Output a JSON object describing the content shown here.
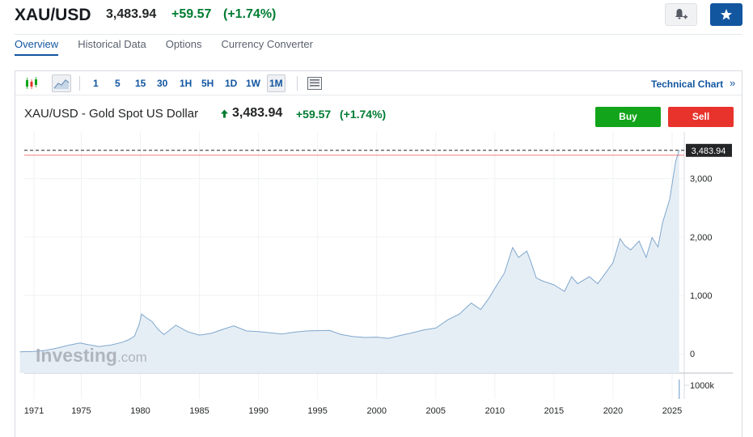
{
  "header": {
    "symbol": "XAU/USD",
    "price": "3,483.94",
    "change": "+59.57",
    "change_pct": "(+1.74%)"
  },
  "icons": {
    "alert": "bell-plus-icon",
    "watchlist": "star-icon"
  },
  "nav": {
    "items": [
      "Overview",
      "Historical Data",
      "Options",
      "Currency Converter"
    ],
    "active": "Overview"
  },
  "toolbar": {
    "chart_type_icons": [
      "candlestick-icon",
      "area-chart-icon"
    ],
    "timeframes": [
      "1",
      "5",
      "15",
      "30",
      "1H",
      "5H",
      "1D",
      "1W",
      "1M"
    ],
    "active_timeframe": "1M",
    "layout_icon": "layout-icon",
    "technical_chart_label": "Technical Chart",
    "technical_chart_arrow": "»"
  },
  "chart_header": {
    "title": "XAU/USD - Gold Spot US Dollar",
    "price": "3,483.94",
    "change": "+59.57",
    "change_pct": "(+1.74%)",
    "buy_label": "Buy",
    "sell_label": "Sell"
  },
  "watermark": {
    "brand": "Investing",
    "suffix": ".com"
  },
  "colors": {
    "accent": "#1256a0",
    "positive": "#007c32",
    "buy": "#12a41a",
    "sell": "#e7332b",
    "line": "#7fa7cd",
    "area": "#e6eef5"
  },
  "chart_data": {
    "type": "area",
    "title": "XAU/USD - Gold Spot US Dollar",
    "xlabel": "",
    "ylabel": "",
    "x_ticks": [
      "1971",
      "1975",
      "1980",
      "1985",
      "1990",
      "1995",
      "2000",
      "2005",
      "2010",
      "2015",
      "2020",
      "2025"
    ],
    "y_ticks": [
      "0",
      "1,000",
      "2,000",
      "3,000"
    ],
    "ylim": [
      -330,
      3800
    ],
    "last_price_label": "3,483.94",
    "last_price": 3483.94,
    "volume_label": "1000k",
    "grid": true,
    "series": [
      {
        "values": [
          [
            1969.8,
            35
          ],
          [
            1971.0,
            40
          ],
          [
            1972.0,
            60
          ],
          [
            1973.0,
            100
          ],
          [
            1974.0,
            150
          ],
          [
            1974.9,
            185
          ],
          [
            1975.5,
            160
          ],
          [
            1976.5,
            125
          ],
          [
            1977.5,
            150
          ],
          [
            1978.5,
            200
          ],
          [
            1979.0,
            240
          ],
          [
            1979.5,
            300
          ],
          [
            1979.9,
            500
          ],
          [
            1980.1,
            680
          ],
          [
            1980.5,
            620
          ],
          [
            1981.0,
            550
          ],
          [
            1981.5,
            420
          ],
          [
            1982.0,
            330
          ],
          [
            1982.7,
            440
          ],
          [
            1983.0,
            490
          ],
          [
            1984.0,
            380
          ],
          [
            1985.0,
            320
          ],
          [
            1986.0,
            350
          ],
          [
            1987.0,
            420
          ],
          [
            1987.9,
            480
          ],
          [
            1989.0,
            390
          ],
          [
            1990.0,
            380
          ],
          [
            1991.0,
            360
          ],
          [
            1992.0,
            340
          ],
          [
            1993.0,
            370
          ],
          [
            1994.0,
            390
          ],
          [
            1996.0,
            400
          ],
          [
            1997.0,
            330
          ],
          [
            1998.0,
            295
          ],
          [
            1999.0,
            280
          ],
          [
            2000.0,
            285
          ],
          [
            2001.0,
            265
          ],
          [
            2002.0,
            315
          ],
          [
            2003.0,
            360
          ],
          [
            2004.0,
            410
          ],
          [
            2005.0,
            440
          ],
          [
            2006.0,
            580
          ],
          [
            2007.0,
            680
          ],
          [
            2008.0,
            870
          ],
          [
            2008.8,
            760
          ],
          [
            2009.5,
            950
          ],
          [
            2010.0,
            1120
          ],
          [
            2010.8,
            1380
          ],
          [
            2011.5,
            1820
          ],
          [
            2012.0,
            1650
          ],
          [
            2012.7,
            1760
          ],
          [
            2013.0,
            1600
          ],
          [
            2013.5,
            1300
          ],
          [
            2014.0,
            1250
          ],
          [
            2015.0,
            1180
          ],
          [
            2015.9,
            1070
          ],
          [
            2016.5,
            1320
          ],
          [
            2017.0,
            1200
          ],
          [
            2018.0,
            1320
          ],
          [
            2018.7,
            1200
          ],
          [
            2019.5,
            1420
          ],
          [
            2020.0,
            1560
          ],
          [
            2020.6,
            1970
          ],
          [
            2021.0,
            1850
          ],
          [
            2021.5,
            1780
          ],
          [
            2022.2,
            1930
          ],
          [
            2022.8,
            1650
          ],
          [
            2023.3,
            1990
          ],
          [
            2023.8,
            1830
          ],
          [
            2024.2,
            2250
          ],
          [
            2024.8,
            2650
          ],
          [
            2025.3,
            3300
          ],
          [
            2025.6,
            3483.94
          ]
        ]
      }
    ]
  }
}
